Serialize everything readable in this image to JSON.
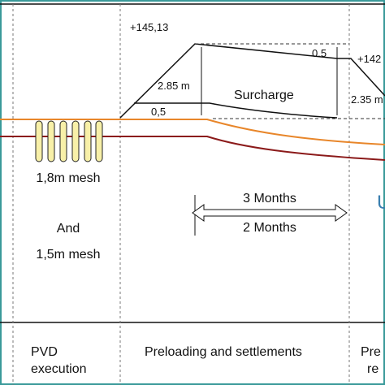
{
  "labels": {
    "top_elevation": "+145,13",
    "top_gap": "0.5",
    "right_elevation": "+142",
    "height_left": "2.85 m",
    "surcharge": "Surcharge",
    "inner_gap": "0,5",
    "height_right": "2.35 m",
    "right_mark": "U"
  },
  "drains": {
    "line1": "1,8m mesh",
    "line2": "And",
    "line3": "1,5m mesh"
  },
  "durations": {
    "upper": "3 Months",
    "lower": "2 Months"
  },
  "phases": {
    "pvd_line1": "PVD",
    "pvd_line2": "execution",
    "preloading": "Preloading and settlements",
    "next_line1": "Pre",
    "next_line2": "re"
  }
}
